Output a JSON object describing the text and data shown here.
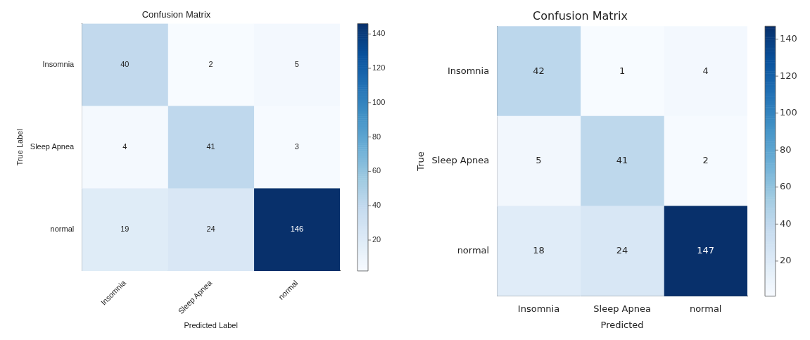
{
  "chart_data": [
    {
      "type": "heatmap",
      "title": "Confusion Matrix",
      "xlabel": "Predicted Label",
      "ylabel": "True Label",
      "categories": [
        "Insomnia",
        "Sleep Apnea",
        "normal"
      ],
      "y_categories": [
        "Insomnia",
        "Sleep Apnea",
        "normal"
      ],
      "cells": [
        [
          40,
          2,
          5
        ],
        [
          4,
          41,
          3
        ],
        [
          19,
          24,
          146
        ]
      ],
      "clim": [
        2,
        146
      ],
      "cticks": [
        20,
        40,
        60,
        80,
        100,
        120,
        140
      ],
      "data_labels": true
    },
    {
      "type": "heatmap",
      "title": "Confusion Matrix",
      "xlabel": "Predicted",
      "ylabel": "True",
      "categories": [
        "Insomnia",
        "Sleep Apnea",
        "normal"
      ],
      "y_categories": [
        "Insomnia",
        "Sleep Apnea",
        "normal"
      ],
      "cells": [
        [
          42,
          1,
          4
        ],
        [
          5,
          41,
          2
        ],
        [
          18,
          24,
          147
        ]
      ],
      "clim": [
        1,
        147
      ],
      "cticks": [
        20,
        40,
        60,
        80,
        100,
        120,
        140
      ],
      "data_labels": true
    }
  ]
}
